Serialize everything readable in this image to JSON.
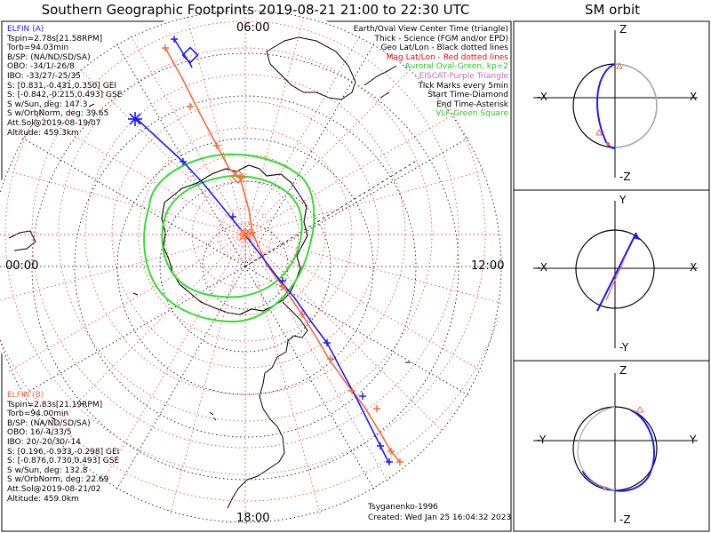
{
  "title": "Southern Geographic Footprints 2019-08-21 21:00 to 22:30 UTC",
  "sm_title": "SM orbit",
  "hour_labels": {
    "top": "06:00",
    "left": "00:00",
    "right": "12:00",
    "bottom": "18:00"
  },
  "elfin_a": {
    "name": "ELFIN (A)",
    "color": "#1a1aff",
    "lines": [
      "Tspin=2.78s[21.58RPM]",
      "Torb=94.03min",
      "B/SP: (NA/ND/SD/SA)",
      "OBO: -34/1/-26/8",
      "IBO: -33/27/-25/35",
      "S: [0.831,-0.431,0.350] GEI",
      "S: [-0.842,-0.215,0.493] GSE",
      "S w/Sun, deg: 147.3",
      "S w/OrbNorm, deg: 39.65",
      "Att.Sol@2019-08-19/07",
      "Altitude: 459.3km"
    ]
  },
  "elfin_b": {
    "name": "ELFIN (B)",
    "color": "#ff6633",
    "lines": [
      "Tspin=2.83s[21.19RPM]",
      "Torb=94.00min",
      "B/SP: (NA/ND/SD/SA)",
      "OBO: 16/-4/33/5",
      "IBO: 20/-20/30/-14",
      "S: [0.196,-0.933,-0.298] GEI",
      "S: [-0.876,0.730,0.493] GSE",
      "S w/Sun, deg: 132.8",
      "S w/OrbNorm, deg: 22.69",
      "Att.Sol@2019-08-21/02",
      "Altitude: 459.0km"
    ]
  },
  "legend": [
    {
      "text": "Earth/Oval View Center Time (triangle)",
      "color": "#000000"
    },
    {
      "text": "Thick - Science (FGM and/or EPD)",
      "color": "#000000"
    },
    {
      "text": "Geo Lat/Lon - Black dotted lines",
      "color": "#000000"
    },
    {
      "text": "Mag Lat/Lon - Red dotted lines",
      "color": "#ff0000"
    },
    {
      "text": "Auroral Oval-Green, kp=2",
      "color": "#22cc22"
    },
    {
      "text": "EISCAT-Purple Triangle",
      "color": "#cc66cc"
    },
    {
      "text": "Tick Marks every 5min",
      "color": "#000000"
    },
    {
      "text": "Start Time-Diamond",
      "color": "#000000"
    },
    {
      "text": "End Time-Asterisk",
      "color": "#000000"
    },
    {
      "text": "VLF-Green Square",
      "color": "#22cc22"
    }
  ],
  "credits": {
    "author": "Tsyganenko-1996",
    "created": "Created: Wed Jan 25 16:04:32 2023"
  },
  "sm_panels": [
    {
      "top": "Z",
      "bottom": "-Z",
      "left": "-X",
      "right": "X"
    },
    {
      "top": "Y",
      "bottom": "-Y",
      "left": "-X",
      "right": "X"
    },
    {
      "top": "Z",
      "bottom": "-Z",
      "left": "-Y",
      "right": "Y"
    }
  ],
  "colors": {
    "elfin_a": "#1a1aff",
    "elfin_b": "#ff6633",
    "mag_grid": "#ff4444",
    "auroral_oval": "#33dd33",
    "geo_grid": "#000000"
  }
}
